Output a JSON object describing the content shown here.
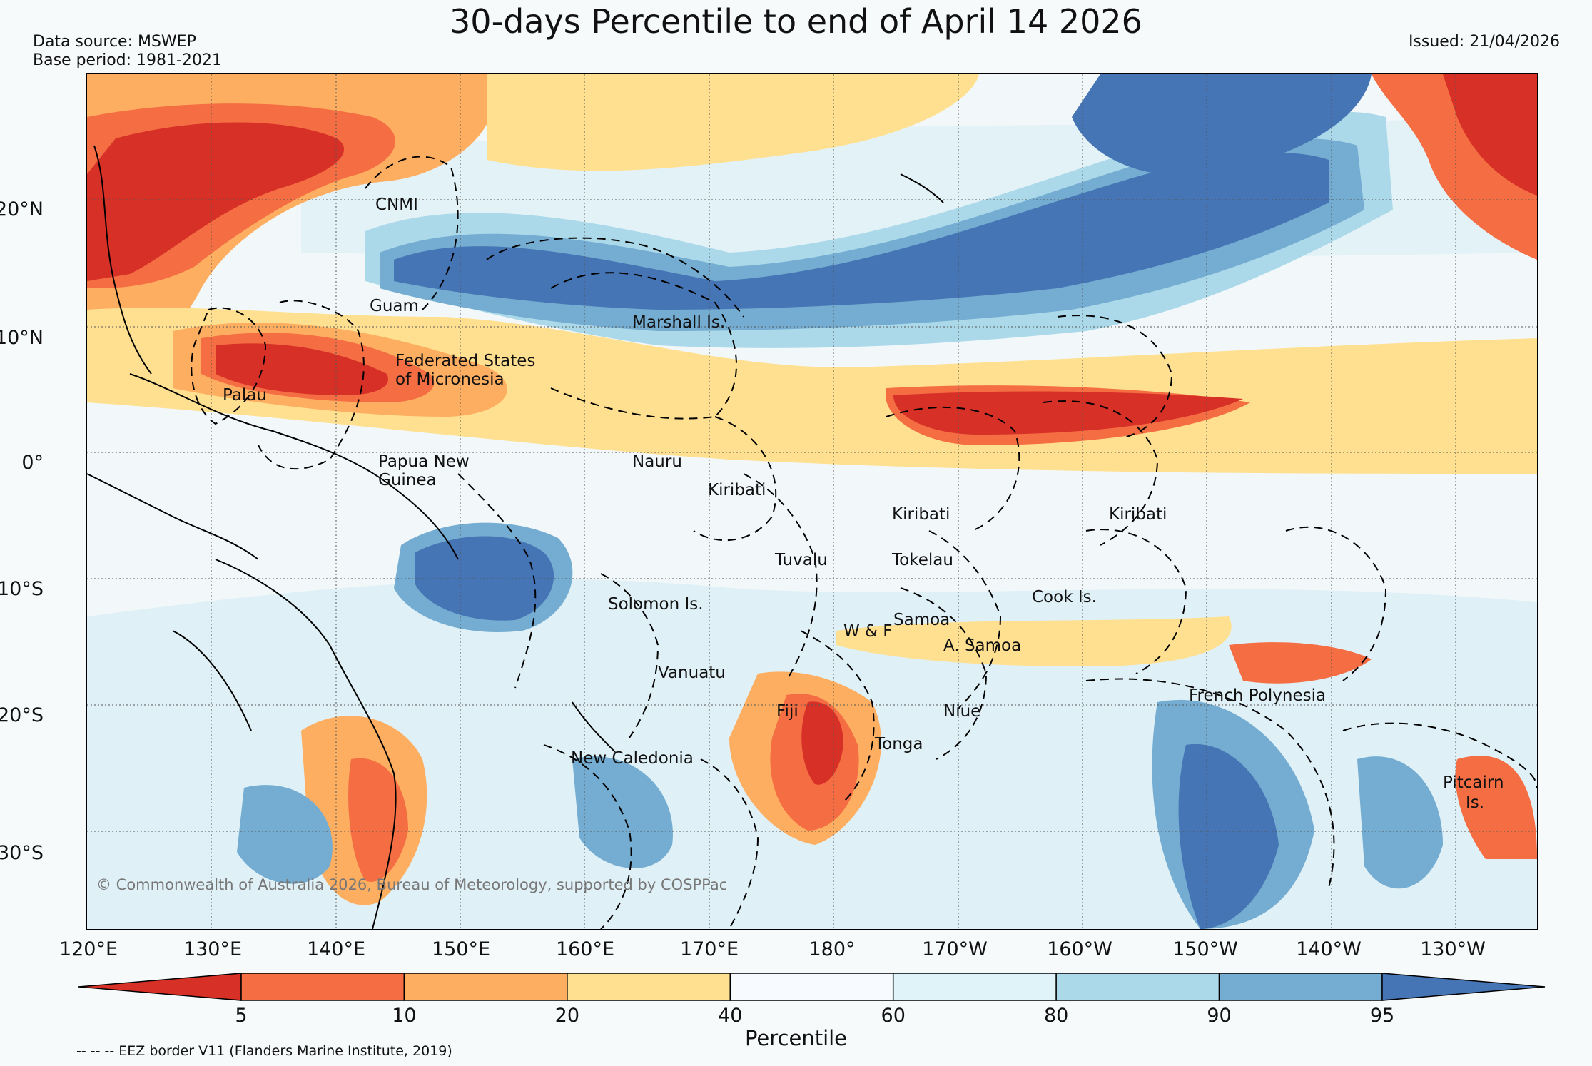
{
  "title": "30-days Percentile to end of April 14 2026",
  "data_source": "Data source: MSWEP",
  "base_period": "Base period: 1981-2021",
  "issued": "Issued: 21/04/2026",
  "lat_labels": [
    "20°N",
    "10°N",
    "0°",
    "10°S",
    "20°S",
    "30°S"
  ],
  "lon_labels": [
    "120°E",
    "130°E",
    "140°E",
    "150°E",
    "160°E",
    "170°E",
    "180°",
    "170°W",
    "160°W",
    "150°W",
    "140°W",
    "130°W"
  ],
  "regions": [
    "CNMI",
    "Guam",
    "Marshall Is.",
    "Federated States",
    "of Micronesia",
    "Palau",
    "Papua New",
    "Guinea",
    "Nauru",
    "Kiribati",
    "Kiribati",
    "Kiribati",
    "Tuvalu",
    "Tokelau",
    "Solomon Is.",
    "Cook Is.",
    "Samoa",
    "W & F",
    "A. Samoa",
    "Vanuatu",
    "Fiji",
    "Niue",
    "French Polynesia",
    "Tonga",
    "New Caledonia",
    "Pitcairn",
    "Is."
  ],
  "copyright": "© Commonwealth of Australia 2026, Bureau of Meteorology, supported by COSPPac",
  "colorbar": {
    "label": "Percentile",
    "ticks": [
      "5",
      "10",
      "20",
      "40",
      "60",
      "80",
      "90",
      "95"
    ],
    "colors": [
      "#d73027",
      "#f46d43",
      "#fdae61",
      "#fee090",
      "#f7fbff",
      "#e0f3f8",
      "#abd9e9",
      "#74add1",
      "#4575b4"
    ]
  },
  "footnote": "-- -- -- EEZ border V11 (Flanders Marine Institute, 2019)"
}
